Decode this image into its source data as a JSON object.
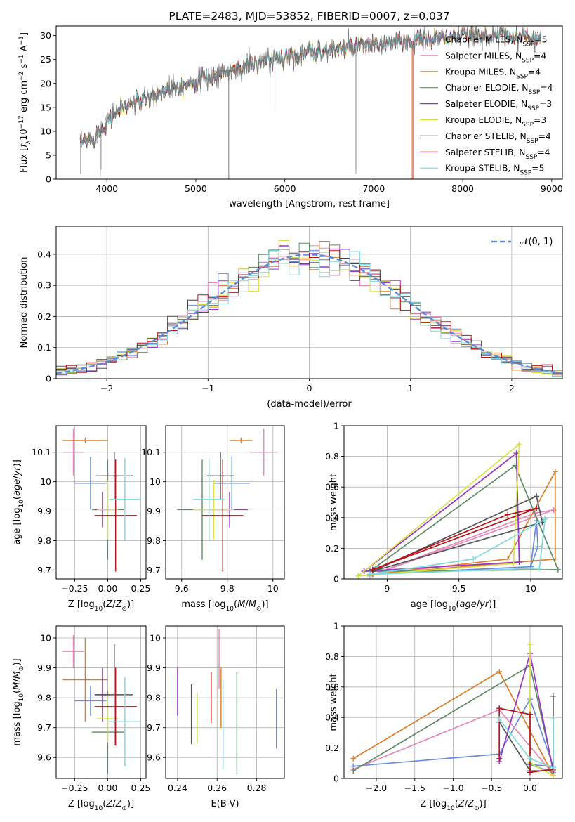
{
  "colors": {
    "Chabrier MILES": "#6a8bd6",
    "Salpeter MILES": "#e589b8",
    "Kroupa MILES": "#d97f2a",
    "Chabrier ELODIE": "#5e8a64",
    "Salpeter ELODIE": "#9a34c4",
    "Kroupa ELODIE": "#d8e246",
    "Chabrier STELIB": "#555555",
    "Salpeter STELIB": "#b2161b",
    "Kroupa STELIB": "#7fd9dd"
  },
  "chart_data": [
    {
      "id": "spectrum",
      "type": "line",
      "title": "PLATE=2483, MJD=53852, FIBERID=0007, z=0.037",
      "xlabel": "wavelength [Angstrom, rest frame]",
      "ylabel": "Flux [fλ10⁻¹⁷ erg cm⁻² s⁻¹ A⁻¹]",
      "xlim": [
        3430,
        9120
      ],
      "ylim": [
        0,
        32
      ],
      "xticks": [
        4000,
        5000,
        6000,
        7000,
        8000,
        9000
      ],
      "yticks": [
        0,
        5,
        10,
        15,
        20,
        25,
        30
      ],
      "grid": false,
      "legend_position": "right",
      "legend": [
        "Chabrier MILES, N_SSP=5",
        "Salpeter MILES, N_SSP=4",
        "Kroupa MILES, N_SSP=4",
        "Chabrier ELODIE, N_SSP=4",
        "Salpeter ELODIE, N_SSP=3",
        "Kroupa ELODIE, N_SSP=3",
        "Chabrier STELIB, N_SSP=4",
        "Salpeter STELIB, N_SSP=4",
        "Kroupa STELIB, N_SSP=5"
      ],
      "continuum": [
        [
          3700,
          7.5
        ],
        [
          3800,
          8
        ],
        [
          3900,
          9.5
        ],
        [
          4000,
          12
        ],
        [
          4100,
          14
        ],
        [
          4300,
          16
        ],
        [
          4500,
          17
        ],
        [
          4700,
          19
        ],
        [
          5000,
          20.5
        ],
        [
          5300,
          22
        ],
        [
          5600,
          24
        ],
        [
          6000,
          25.5
        ],
        [
          6500,
          27
        ],
        [
          7000,
          28
        ],
        [
          7500,
          29
        ],
        [
          8000,
          30
        ],
        [
          8500,
          30
        ],
        [
          8880,
          29.5
        ]
      ],
      "absorption_lines": [
        [
          3705,
          1
        ],
        [
          3935,
          2
        ],
        [
          5370,
          0
        ],
        [
          5890,
          14
        ],
        [
          6800,
          2
        ],
        [
          7420,
          0
        ]
      ]
    },
    {
      "id": "residuals",
      "type": "bar",
      "xlabel": "(data-model)/error",
      "ylabel": "Normed distribution",
      "xlim": [
        -2.5,
        2.5
      ],
      "ylim": [
        0,
        0.49
      ],
      "xticks": [
        -2,
        -1,
        0,
        1,
        2
      ],
      "yticks": [
        0,
        0.1,
        0.2,
        0.3,
        0.4
      ],
      "grid": true,
      "legend_position": "top-right",
      "legend": [
        "𝒩(0, 1)"
      ],
      "bin_width": 0.1
    },
    {
      "id": "age-vs-Z",
      "type": "scatter",
      "xlabel": "Z [log₁₀(Z/Z⊙)]",
      "ylabel": "age  [log₁₀(age/yr)]",
      "xlim": [
        -0.39,
        0.29
      ],
      "ylim": [
        9.67,
        10.19
      ],
      "xticks": [
        -0.25,
        0.0,
        0.25
      ],
      "xticklabels": [
        "−0.25",
        "0.00",
        "0.25"
      ],
      "yticks": [
        9.7,
        9.8,
        9.9,
        10.0,
        10.1
      ],
      "grid": true,
      "points": [
        {
          "model": "Chabrier MILES",
          "x": -0.13,
          "xerr": 0.12,
          "y": 9.995,
          "yerr": 0.09
        },
        {
          "model": "Salpeter MILES",
          "x": -0.26,
          "xerr": 0.08,
          "y": 10.1,
          "yerr": 0.08
        },
        {
          "model": "Kroupa MILES",
          "x": -0.17,
          "xerr": 0.17,
          "y": 10.14,
          "yerr": 0.01
        },
        {
          "model": "Chabrier ELODIE",
          "x": 0.0,
          "xerr": 0.12,
          "y": 9.905,
          "yerr": 0.17
        },
        {
          "model": "Salpeter ELODIE",
          "x": -0.04,
          "xerr": 0.06,
          "y": 9.905,
          "yerr": 0.06
        },
        {
          "model": "Kroupa ELODIE",
          "x": 0.0,
          "xerr": 0.08,
          "y": 9.905,
          "yerr": 0.1
        },
        {
          "model": "Chabrier STELIB",
          "x": 0.05,
          "xerr": 0.14,
          "y": 10.02,
          "yerr": 0.08
        },
        {
          "model": "Salpeter STELIB",
          "x": 0.06,
          "xerr": 0.16,
          "y": 9.885,
          "yerr": 0.19
        },
        {
          "model": "Kroupa STELIB",
          "x": 0.13,
          "xerr": 0.12,
          "y": 9.94,
          "yerr": 0.14
        }
      ]
    },
    {
      "id": "age-vs-mass",
      "type": "scatter",
      "xlabel": "mass [log₁₀(M/M⊙)]",
      "ylabel": "",
      "xlim": [
        9.53,
        10.05
      ],
      "ylim": [
        9.67,
        10.19
      ],
      "xticks": [
        9.6,
        9.8,
        10.0
      ],
      "yticks": [
        9.7,
        9.8,
        9.9,
        10.0,
        10.1
      ],
      "grid": true,
      "points": [
        {
          "model": "Chabrier MILES",
          "x": 9.82,
          "xerr": 0.08,
          "y": 9.995,
          "yerr": 0.09
        },
        {
          "model": "Salpeter MILES",
          "x": 9.96,
          "xerr": 0.06,
          "y": 10.1,
          "yerr": 0.08
        },
        {
          "model": "Kroupa MILES",
          "x": 9.86,
          "xerr": 0.05,
          "y": 10.14,
          "yerr": 0.01
        },
        {
          "model": "Chabrier ELODIE",
          "x": 9.69,
          "xerr": 0.11,
          "y": 9.905,
          "yerr": 0.17
        },
        {
          "model": "Salpeter ELODIE",
          "x": 9.81,
          "xerr": 0.08,
          "y": 9.905,
          "yerr": 0.06
        },
        {
          "model": "Kroupa ELODIE",
          "x": 9.74,
          "xerr": 0.09,
          "y": 9.905,
          "yerr": 0.1
        },
        {
          "model": "Chabrier STELIB",
          "x": 9.77,
          "xerr": 0.06,
          "y": 10.02,
          "yerr": 0.08
        },
        {
          "model": "Salpeter STELIB",
          "x": 9.78,
          "xerr": 0.09,
          "y": 9.885,
          "yerr": 0.19
        },
        {
          "model": "Kroupa STELIB",
          "x": 9.72,
          "xerr": 0.07,
          "y": 9.94,
          "yerr": 0.14
        }
      ]
    },
    {
      "id": "mass-vs-Z",
      "type": "scatter",
      "xlabel": "Z [log₁₀(Z/Z⊙)]",
      "ylabel": "mass [log₁₀(M/M⊙)]",
      "xlim": [
        -0.39,
        0.29
      ],
      "ylim": [
        9.53,
        10.04
      ],
      "xticks": [
        -0.25,
        0.0,
        0.25
      ],
      "xticklabels": [
        "−0.25",
        "0.00",
        "0.25"
      ],
      "yticks": [
        9.6,
        9.7,
        9.8,
        9.9,
        10.0
      ],
      "grid": true,
      "points": [
        {
          "model": "Chabrier MILES",
          "x": -0.13,
          "xerr": 0.12,
          "y": 9.79,
          "yerr": 0.05
        },
        {
          "model": "Salpeter MILES",
          "x": -0.26,
          "xerr": 0.08,
          "y": 9.955,
          "yerr": 0.055
        },
        {
          "model": "Kroupa MILES",
          "x": -0.17,
          "xerr": 0.17,
          "y": 9.86,
          "yerr": 0.14
        },
        {
          "model": "Chabrier ELODIE",
          "x": 0.0,
          "xerr": 0.12,
          "y": 9.685,
          "yerr": 0.14
        },
        {
          "model": "Salpeter ELODIE",
          "x": -0.04,
          "xerr": 0.06,
          "y": 9.81,
          "yerr": 0.09
        },
        {
          "model": "Kroupa ELODIE",
          "x": 0.0,
          "xerr": 0.08,
          "y": 9.73,
          "yerr": 0.08
        },
        {
          "model": "Chabrier STELIB",
          "x": 0.05,
          "xerr": 0.14,
          "y": 9.81,
          "yerr": 0.17
        },
        {
          "model": "Salpeter STELIB",
          "x": 0.06,
          "xerr": 0.16,
          "y": 9.77,
          "yerr": 0.13
        },
        {
          "model": "Kroupa STELIB",
          "x": 0.13,
          "xerr": 0.12,
          "y": 9.72,
          "yerr": 0.15
        }
      ]
    },
    {
      "id": "mass-vs-EBV",
      "type": "scatter",
      "xlabel": "E(B-V)",
      "ylabel": "",
      "xlim": [
        0.234,
        0.294
      ],
      "ylim": [
        9.53,
        10.04
      ],
      "xticks": [
        0.24,
        0.26,
        0.28
      ],
      "yticks": [
        9.6,
        9.7,
        9.8,
        9.9,
        10.0
      ],
      "grid": true,
      "points": [
        {
          "model": "Chabrier MILES",
          "x": 0.29,
          "y": 9.73,
          "yerr": 0.1
        },
        {
          "model": "Salpeter MILES",
          "x": 0.261,
          "y": 9.93,
          "yerr": 0.1
        },
        {
          "model": "Kroupa MILES",
          "x": 0.262,
          "y": 9.8,
          "yerr": 0.1
        },
        {
          "model": "Chabrier ELODIE",
          "x": 0.27,
          "y": 9.715,
          "yerr": 0.17
        },
        {
          "model": "Salpeter ELODIE",
          "x": 0.24,
          "y": 9.82,
          "yerr": 0.08
        },
        {
          "model": "Kroupa ELODIE",
          "x": 0.25,
          "y": 9.73,
          "yerr": 0.085
        },
        {
          "model": "Chabrier STELIB",
          "x": 0.247,
          "y": 9.745,
          "yerr": 0.1
        },
        {
          "model": "Salpeter STELIB",
          "x": 0.257,
          "y": 9.8,
          "yerr": 0.085
        },
        {
          "model": "Kroupa STELIB",
          "x": 0.263,
          "y": 9.71,
          "yerr": 0.15
        }
      ]
    },
    {
      "id": "massweight-vs-age",
      "type": "line",
      "xlabel": "age  [log₁₀(age/yr)]",
      "ylabel": "mass weight",
      "xlim": [
        8.7,
        10.22
      ],
      "ylim": [
        0,
        1
      ],
      "xticks": [
        9.0,
        9.5,
        10.0
      ],
      "yticks": [
        0.0,
        0.2,
        0.4,
        0.6,
        0.8,
        1.0
      ],
      "grid": true,
      "series": [
        {
          "model": "Chabrier MILES",
          "x": [
            8.88,
            10.0,
            10.04,
            10.05,
            10.0
          ],
          "y": [
            0.03,
            0.08,
            0.38,
            0.21,
            0.08
          ]
        },
        {
          "model": "Salpeter MILES",
          "x": [
            8.88,
            10.03,
            10.16,
            8.88
          ],
          "y": [
            0.02,
            0.43,
            0.45,
            0.02
          ]
        },
        {
          "model": "Kroupa MILES",
          "x": [
            8.9,
            9.84,
            10.17,
            10.17,
            8.9
          ],
          "y": [
            0.03,
            0.13,
            0.7,
            0.13,
            0.03
          ]
        },
        {
          "model": "Chabrier ELODIE",
          "x": [
            8.88,
            9.89,
            10.19,
            8.88
          ],
          "y": [
            0.05,
            0.74,
            0.06,
            0.05
          ]
        },
        {
          "model": "Salpeter ELODIE",
          "x": [
            8.84,
            9.9,
            9.92,
            8.84
          ],
          "y": [
            0.05,
            0.82,
            0.11,
            0.05
          ]
        },
        {
          "model": "Kroupa ELODIE",
          "x": [
            8.8,
            9.88,
            9.92,
            8.8
          ],
          "y": [
            0.02,
            0.1,
            0.88,
            0.02
          ]
        },
        {
          "model": "Chabrier STELIB",
          "x": [
            8.9,
            10.04,
            10.08,
            8.9
          ],
          "y": [
            0.05,
            0.54,
            0.37,
            0.05
          ]
        },
        {
          "model": "Salpeter STELIB",
          "x": [
            8.9,
            9.84,
            10.04,
            8.9
          ],
          "y": [
            0.06,
            0.42,
            0.46,
            0.06
          ]
        },
        {
          "model": "Kroupa STELIB",
          "x": [
            8.88,
            9.6,
            10.1,
            10.06,
            8.88
          ],
          "y": [
            0.03,
            0.13,
            0.39,
            0.07,
            0.03
          ]
        }
      ]
    },
    {
      "id": "massweight-vs-Z",
      "type": "line",
      "xlabel": "Z [log₁₀(Z/Z⊙)]",
      "ylabel": "mass weight",
      "xlim": [
        -2.42,
        0.42
      ],
      "ylim": [
        0,
        1
      ],
      "xticks": [
        -2.0,
        -1.5,
        -1.0,
        -0.5,
        0.0
      ],
      "xticklabels": [
        "−2.0",
        "−1.5",
        "−1.0",
        "−0.5",
        "0.0"
      ],
      "yticks": [
        0.0,
        0.2,
        0.4,
        0.6,
        0.8,
        1.0
      ],
      "grid": true,
      "series": [
        {
          "model": "Chabrier MILES",
          "x": [
            -2.3,
            -0.4,
            0.0,
            0.3,
            0.0,
            0.3
          ],
          "y": [
            0.08,
            0.16,
            0.52,
            0.08,
            0.09,
            0.04
          ]
        },
        {
          "model": "Salpeter MILES",
          "x": [
            -2.3,
            -0.4,
            0.3,
            0.3
          ],
          "y": [
            0.06,
            0.45,
            0.03,
            0.02
          ]
        },
        {
          "model": "Kroupa MILES",
          "x": [
            -2.3,
            -0.4,
            0.3
          ],
          "y": [
            0.13,
            0.7,
            0.02
          ]
        },
        {
          "model": "Chabrier ELODIE",
          "x": [
            -2.3,
            0.0,
            0.3
          ],
          "y": [
            0.05,
            0.74,
            0.06
          ]
        },
        {
          "model": "Salpeter ELODIE",
          "x": [
            -0.4,
            0.0,
            0.3
          ],
          "y": [
            0.11,
            0.82,
            0.05
          ]
        },
        {
          "model": "Kroupa ELODIE",
          "x": [
            0.0,
            0.0,
            0.3
          ],
          "y": [
            0.88,
            0.1,
            0.02
          ]
        },
        {
          "model": "Chabrier STELIB",
          "x": [
            -0.4,
            0.0,
            0.3,
            0.3
          ],
          "y": [
            0.37,
            0.05,
            0.05,
            0.54
          ]
        },
        {
          "model": "Salpeter STELIB",
          "x": [
            -0.4,
            -0.4,
            0.0,
            0.0,
            0.3
          ],
          "y": [
            0.13,
            0.46,
            0.42,
            0.04,
            0.06
          ]
        },
        {
          "model": "Kroupa STELIB",
          "x": [
            -0.4,
            0.0,
            0.3,
            0.3
          ],
          "y": [
            0.39,
            0.13,
            0.07,
            0.39
          ]
        }
      ]
    }
  ]
}
